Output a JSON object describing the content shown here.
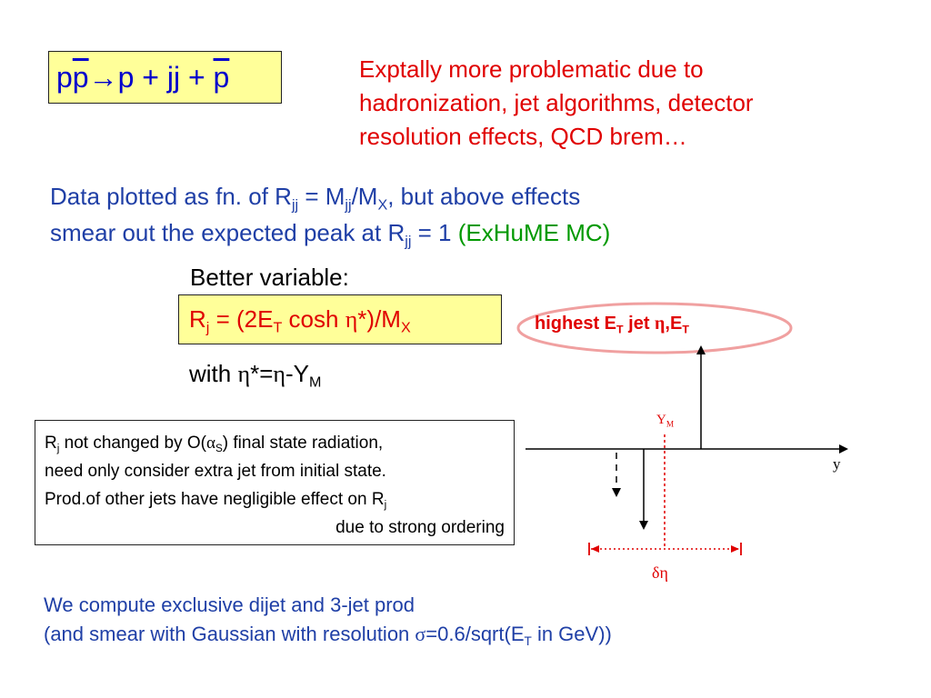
{
  "reaction": {
    "p1": "p",
    "pbar1": "p",
    "arrow": "→",
    "rest": "p + jj + ",
    "pbar2": "p"
  },
  "red_note": {
    "line1": "Exptally more problematic due to",
    "line2": "hadronization, jet algorithms, detector",
    "line3": "resolution effects, QCD brem…"
  },
  "data_plotted": {
    "l1_a": "Data plotted as fn. of   R",
    "l1_sub1": "jj",
    "l1_b": "  =  M",
    "l1_sub2": "jj",
    "l1_c": "/M",
    "l1_sub3": "X",
    "l1_d": ",  but above effects",
    "l2_a": "smear out the expected peak at  R",
    "l2_sub": "jj",
    "l2_b": " = 1   ",
    "l2_green": "(ExHuME MC)"
  },
  "better_variable": "Better variable:",
  "formula": {
    "a": "R",
    "sub1": "j",
    "b": " = (2E",
    "sub2": "T",
    "c": " cosh ",
    "eta": "η",
    "d": "*)/M",
    "sub3": "X"
  },
  "with_line": {
    "a": "with ",
    "eta1": "η",
    "b": "*=",
    "eta2": "η",
    "c": "-Y",
    "sub": "M"
  },
  "note_box": {
    "l1_a": "R",
    "l1_sub": "j",
    "l1_b": " not changed by O(",
    "alpha": "α",
    "l1_subS": "S",
    "l1_c": ") final state radiation,",
    "l2": "need only consider extra jet from initial state.",
    "l3_a": "Prod.of other jets have negligible effect on R",
    "l3_sub": "j",
    "l4": "due to strong ordering"
  },
  "diagram": {
    "jet_label_a": "highest E",
    "jet_label_sub": "T",
    "jet_label_b": " jet   ",
    "jet_label_eta": "η",
    "jet_label_c": ",E",
    "jet_label_sub2": "T",
    "ym_a": "Y",
    "ym_sub": "M",
    "y_axis": "y",
    "delta_eta": "δη",
    "colors": {
      "red": "#e00000",
      "black": "#000000"
    }
  },
  "bottom": {
    "line1": "We compute exclusive dijet and 3-jet prod",
    "l2_a": "(and smear with Gaussian with resolution ",
    "sigma": "σ",
    "l2_b": "=0.6/sqrt(E",
    "l2_sub": "T",
    "l2_c": " in GeV))"
  },
  "colors": {
    "blue_text": "#1f3fa6",
    "red_text": "#e00000",
    "green_text": "#009900",
    "box_fill": "#ffff99"
  }
}
